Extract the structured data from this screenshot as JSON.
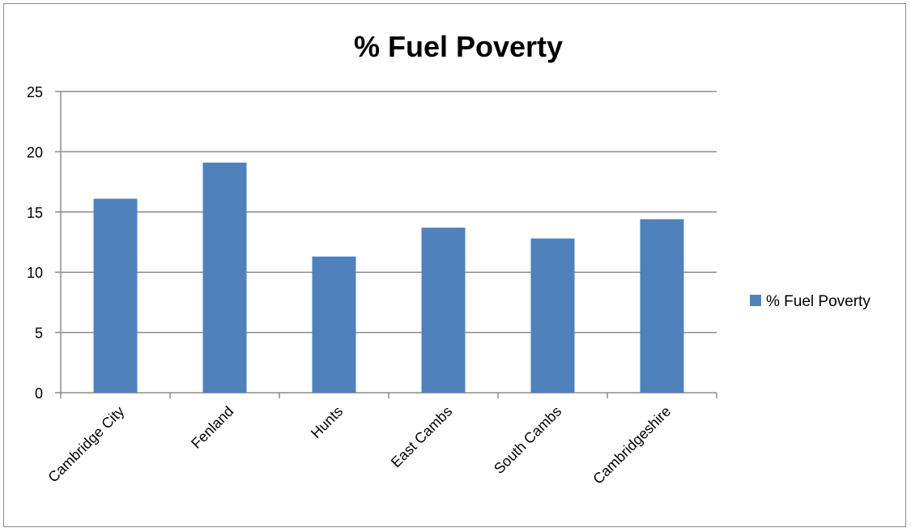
{
  "chart_data": {
    "type": "bar",
    "title": "% Fuel Poverty",
    "xlabel": "",
    "ylabel": "",
    "categories": [
      "Cambridge City",
      "Fenland",
      "Hunts",
      "East Cambs",
      "South Cambs",
      "Cambridgeshire"
    ],
    "series": [
      {
        "name": "% Fuel Poverty",
        "values": [
          16.1,
          19.1,
          11.3,
          13.7,
          12.8,
          14.4
        ]
      }
    ],
    "ylim": [
      0,
      25
    ],
    "yticks": [
      "0",
      "5",
      "10",
      "15",
      "20",
      "25"
    ],
    "grid": true,
    "legend": "right",
    "colors": {
      "bar": "#4f81bd",
      "grid": "#8c8c8c",
      "axis": "#8c8c8c"
    }
  }
}
